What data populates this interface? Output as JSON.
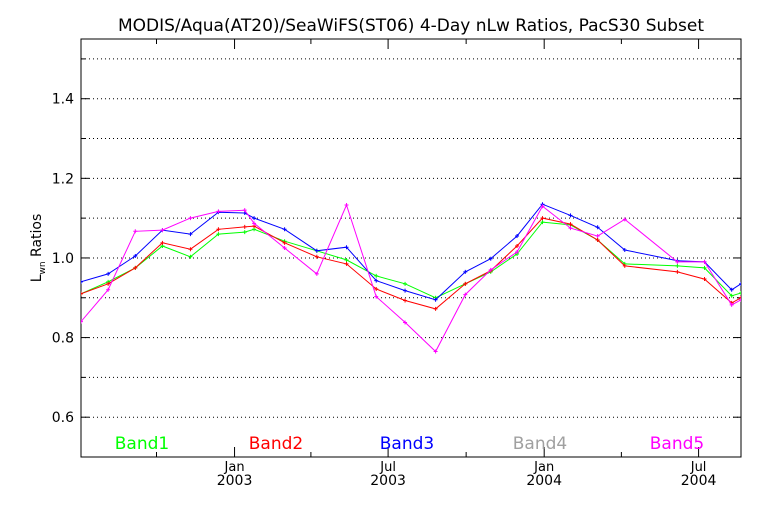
{
  "chart_data": {
    "type": "line",
    "title": "MODIS/Aqua(AT20)/SeaWiFS(ST06) 4-Day nLw Ratios, PacS30 Subset",
    "ylabel_main": "L",
    "ylabel_sub": "wn",
    "ylabel_rest": " Ratios",
    "xlabel": "",
    "xlim": [
      "2002-07-04",
      "2004-08-20"
    ],
    "ylim": [
      0.5,
      1.55
    ],
    "yticks": [
      0.6,
      0.8,
      1.0,
      1.2,
      1.4
    ],
    "ytick_labels": [
      "0.6",
      "0.8",
      "1.0",
      "1.2",
      "1.4"
    ],
    "yminor_step": 0.1,
    "grid": "dotted horizontal at y = 0.6 … 1.5 every 0.1",
    "xticks": [
      {
        "date": "2003-01-01",
        "month": "Jan",
        "year": "2003"
      },
      {
        "date": "2003-07-01",
        "month": "Jul",
        "year": "2003"
      },
      {
        "date": "2004-01-01",
        "month": "Jan",
        "year": "2004"
      },
      {
        "date": "2004-07-01",
        "month": "Jul",
        "year": "2004"
      }
    ],
    "xminor_ticks": [
      "2002-10-01",
      "2003-04-01",
      "2003-10-01",
      "2004-04-01"
    ],
    "legend_placement": "bottom, inside plot, horizontal",
    "series": [
      {
        "name": "Band1",
        "color": "#00ff00",
        "x": [
          "2002-07-04",
          "2002-08-05",
          "2002-09-06",
          "2002-10-08",
          "2002-11-10",
          "2002-12-13",
          "2003-01-13",
          "2003-01-24",
          "2003-03-01",
          "2003-04-08",
          "2003-05-13",
          "2003-06-17",
          "2003-07-21",
          "2003-08-26",
          "2003-09-30",
          "2003-10-30",
          "2003-11-30",
          "2003-12-30",
          "2004-02-01",
          "2004-03-04",
          "2004-04-05",
          "2004-06-06",
          "2004-07-08",
          "2004-08-09",
          "2004-08-20"
        ],
        "y": [
          0.91,
          0.94,
          0.975,
          1.03,
          1.003,
          1.06,
          1.065,
          1.072,
          1.042,
          1.018,
          0.995,
          0.955,
          0.935,
          0.9,
          0.935,
          0.965,
          1.01,
          1.09,
          1.083,
          1.045,
          0.985,
          0.98,
          0.975,
          0.905,
          0.912
        ]
      },
      {
        "name": "Band2",
        "color": "#ff0000",
        "x": [
          "2002-07-04",
          "2002-08-05",
          "2002-09-06",
          "2002-10-08",
          "2002-11-10",
          "2002-12-13",
          "2003-01-13",
          "2003-01-24",
          "2003-03-01",
          "2003-04-08",
          "2003-05-13",
          "2003-06-17",
          "2003-07-21",
          "2003-08-26",
          "2003-09-30",
          "2003-10-30",
          "2003-11-30",
          "2003-12-30",
          "2004-02-01",
          "2004-03-04",
          "2004-04-05",
          "2004-06-06",
          "2004-07-08",
          "2004-08-09",
          "2004-08-20"
        ],
        "y": [
          0.91,
          0.935,
          0.975,
          1.038,
          1.022,
          1.072,
          1.078,
          1.08,
          1.038,
          1.003,
          0.985,
          0.922,
          0.893,
          0.872,
          0.935,
          0.968,
          1.03,
          1.1,
          1.085,
          1.045,
          0.98,
          0.965,
          0.947,
          0.887,
          0.9
        ]
      },
      {
        "name": "Band3",
        "color": "#0000ff",
        "x": [
          "2002-07-04",
          "2002-08-05",
          "2002-09-06",
          "2002-10-08",
          "2002-11-10",
          "2002-12-13",
          "2003-01-13",
          "2003-01-24",
          "2003-03-01",
          "2003-04-08",
          "2003-05-13",
          "2003-06-17",
          "2003-07-21",
          "2003-08-26",
          "2003-09-30",
          "2003-10-30",
          "2003-11-30",
          "2003-12-30",
          "2004-02-01",
          "2004-03-04",
          "2004-04-05",
          "2004-06-06",
          "2004-07-08",
          "2004-08-09",
          "2004-08-20"
        ],
        "y": [
          0.94,
          0.96,
          1.005,
          1.07,
          1.06,
          1.115,
          1.113,
          1.1,
          1.072,
          1.018,
          1.027,
          0.943,
          0.918,
          0.895,
          0.965,
          0.998,
          1.055,
          1.135,
          1.107,
          1.077,
          1.02,
          0.993,
          0.99,
          0.92,
          0.935
        ]
      },
      {
        "name": "Band4",
        "color": "#a0a0a0",
        "x": [],
        "y": []
      },
      {
        "name": "Band5",
        "color": "#ff00ff",
        "x": [
          "2002-07-04",
          "2002-08-05",
          "2002-09-06",
          "2002-10-08",
          "2002-11-10",
          "2002-12-13",
          "2003-01-13",
          "2003-01-24",
          "2003-03-01",
          "2003-04-08",
          "2003-05-13",
          "2003-06-17",
          "2003-07-21",
          "2003-08-26",
          "2003-09-30",
          "2003-10-30",
          "2003-11-30",
          "2003-12-30",
          "2004-02-01",
          "2004-03-04",
          "2004-04-05",
          "2004-06-06",
          "2004-07-08",
          "2004-08-09",
          "2004-08-20"
        ],
        "y": [
          0.84,
          0.92,
          1.067,
          1.07,
          1.1,
          1.117,
          1.12,
          1.087,
          1.025,
          0.96,
          1.133,
          0.903,
          0.838,
          0.765,
          0.908,
          0.97,
          1.015,
          1.13,
          1.075,
          1.055,
          1.097,
          0.99,
          0.99,
          0.882,
          0.895
        ]
      }
    ]
  }
}
